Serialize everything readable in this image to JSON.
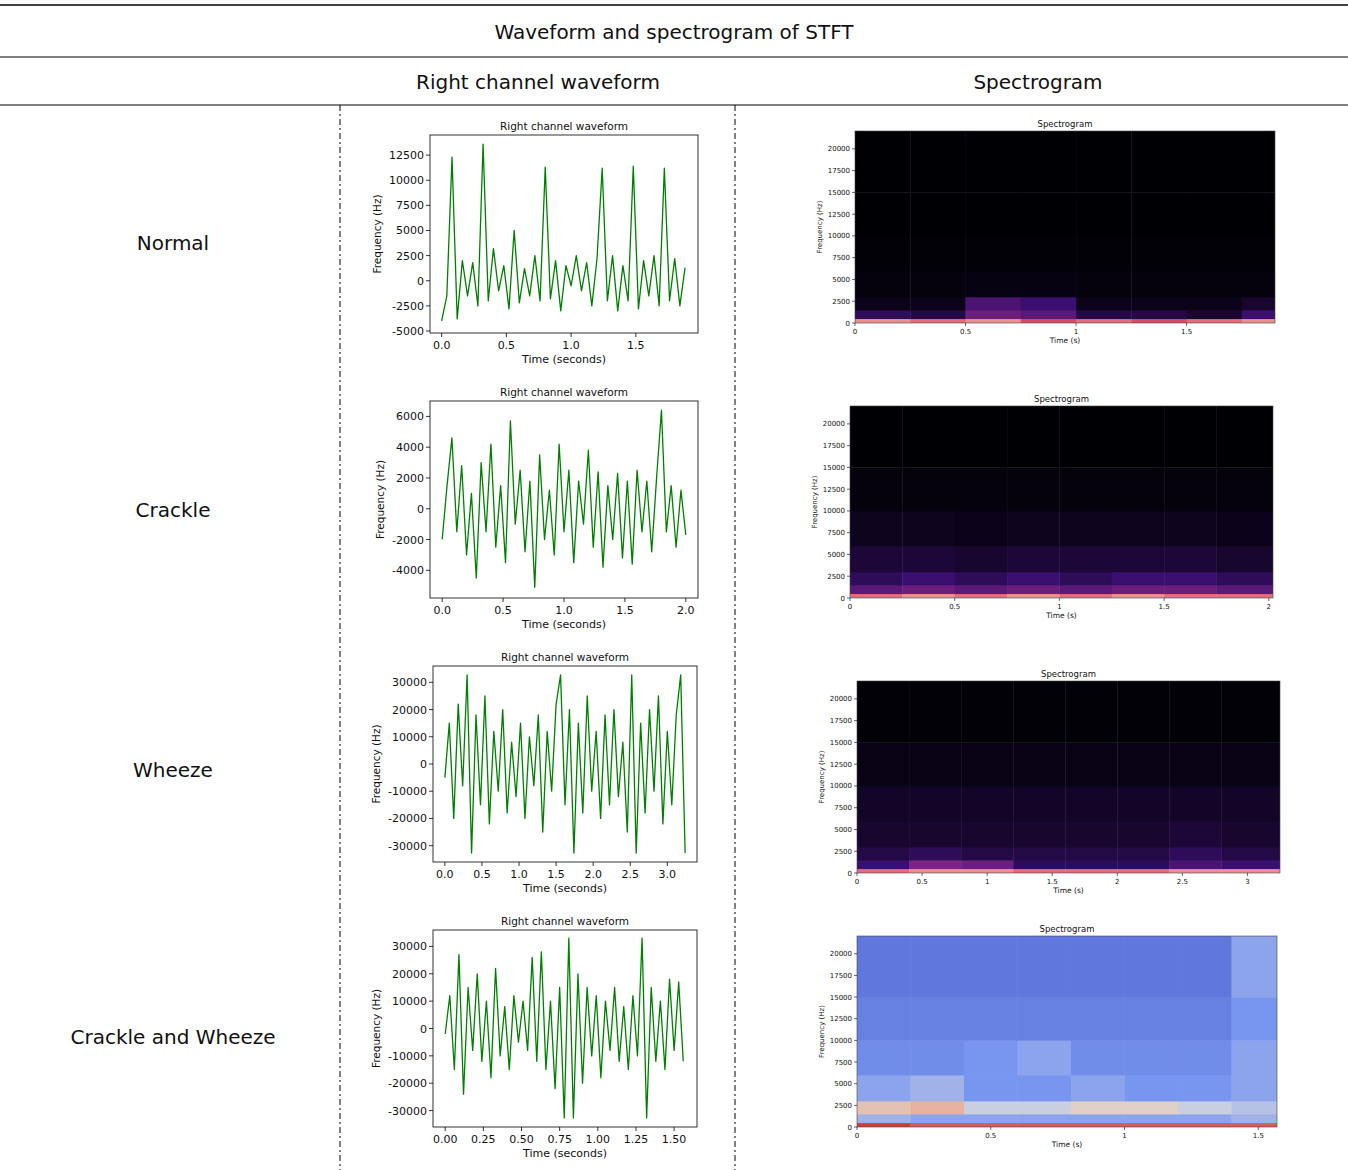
{
  "table": {
    "title": "Waveform and spectrogram of STFT",
    "columns": [
      "Right channel waveform",
      "Spectrogram"
    ],
    "rows": [
      "Normal",
      "Crackle",
      "Wheeze",
      "Crackle and Wheeze"
    ]
  },
  "chart_data": [
    {
      "type": "line",
      "title": "Right channel waveform",
      "x_label": "Time (seconds)",
      "y_label": "Frequency (Hz)",
      "color": "#008000",
      "grid": false,
      "xlim": [
        -0.09,
        1.98
      ],
      "ylim": [
        -5200,
        14500
      ],
      "xticks": [
        {
          "value": 0,
          "label": "0.0"
        },
        {
          "value": 0.5,
          "label": "0.5"
        },
        {
          "value": 1,
          "label": "1.0"
        },
        {
          "value": 1.5,
          "label": "1.5"
        }
      ],
      "yticks": [
        -5000,
        -2500,
        0,
        2500,
        5000,
        7500,
        10000,
        12500
      ],
      "x": [
        0,
        0.04,
        0.08,
        0.12,
        0.16,
        0.2,
        0.24,
        0.28,
        0.32,
        0.36,
        0.4,
        0.44,
        0.48,
        0.52,
        0.56,
        0.6,
        0.64,
        0.68,
        0.72,
        0.76,
        0.8,
        0.84,
        0.88,
        0.92,
        0.96,
        1.0,
        1.04,
        1.08,
        1.12,
        1.16,
        1.2,
        1.24,
        1.28,
        1.32,
        1.36,
        1.4,
        1.44,
        1.48,
        1.52,
        1.56,
        1.6,
        1.64,
        1.68,
        1.72,
        1.76,
        1.8,
        1.84,
        1.88
      ],
      "values": [
        -4000,
        -1500,
        12300,
        -3800,
        2000,
        -1500,
        1800,
        -2500,
        13600,
        -2000,
        3200,
        -1000,
        1500,
        -2800,
        5000,
        -2200,
        1200,
        -1500,
        2500,
        -2000,
        11300,
        -1800,
        2000,
        -3000,
        1500,
        -500,
        2500,
        -1000,
        1800,
        -2500,
        2200,
        11200,
        -2000,
        2500,
        -3000,
        1500,
        -2000,
        11400,
        -2800,
        2000,
        -1500,
        2500,
        -2500,
        11200,
        -2000,
        2200,
        -2500,
        1300
      ]
    },
    {
      "type": "heatmap",
      "title": "Spectrogram",
      "x_label": "Time (s)",
      "y_label": "Frequency (Hz)",
      "color": "magma",
      "xlim": [
        0,
        1.9
      ],
      "ylim": [
        0,
        22050
      ],
      "xticks": [
        0,
        0.5,
        1,
        1.5
      ],
      "yticks": [
        0,
        2500,
        5000,
        7500,
        10000,
        12500,
        15000,
        17500,
        20000
      ],
      "clim": [
        0,
        100
      ],
      "time_edges": [
        0,
        0.25,
        0.5,
        0.75,
        1.0,
        1.25,
        1.5,
        1.75,
        1.9
      ],
      "freq_edges": [
        0,
        500,
        1500,
        3000,
        6000,
        10000,
        15000,
        22050
      ],
      "cells": [
        [
          85,
          80,
          85,
          75,
          80,
          75,
          80,
          85
        ],
        [
          20,
          15,
          40,
          35,
          15,
          15,
          10,
          25
        ],
        [
          5,
          5,
          30,
          25,
          5,
          5,
          5,
          10
        ],
        [
          2,
          2,
          3,
          3,
          2,
          2,
          2,
          2
        ],
        [
          1,
          1,
          1,
          1,
          1,
          1,
          1,
          1
        ],
        [
          0,
          0,
          0,
          0,
          0,
          0,
          0,
          0
        ],
        [
          0,
          0,
          0,
          0,
          0,
          0,
          0,
          0
        ]
      ]
    },
    {
      "type": "line",
      "title": "Right channel waveform",
      "x_label": "Time (seconds)",
      "y_label": "Frequency (Hz)",
      "color": "#008000",
      "grid": false,
      "xlim": [
        -0.1,
        2.1
      ],
      "ylim": [
        -5800,
        7000
      ],
      "xticks": [
        {
          "value": 0,
          "label": "0.0"
        },
        {
          "value": 0.5,
          "label": "0.5"
        },
        {
          "value": 1,
          "label": "1.0"
        },
        {
          "value": 1.5,
          "label": "1.5"
        },
        {
          "value": 2,
          "label": "2.0"
        }
      ],
      "yticks": [
        -4000,
        -2000,
        0,
        2000,
        4000,
        6000
      ],
      "x": [
        0,
        0.04,
        0.08,
        0.12,
        0.16,
        0.2,
        0.24,
        0.28,
        0.32,
        0.36,
        0.4,
        0.44,
        0.48,
        0.52,
        0.56,
        0.6,
        0.64,
        0.68,
        0.72,
        0.76,
        0.8,
        0.84,
        0.88,
        0.92,
        0.96,
        1.0,
        1.04,
        1.08,
        1.12,
        1.16,
        1.2,
        1.24,
        1.28,
        1.32,
        1.36,
        1.4,
        1.44,
        1.48,
        1.52,
        1.56,
        1.6,
        1.64,
        1.68,
        1.72,
        1.76,
        1.8,
        1.84,
        1.88,
        1.92,
        1.96,
        2.0
      ],
      "values": [
        -2000,
        1500,
        4600,
        -1500,
        2800,
        -3000,
        1000,
        -4500,
        3000,
        -1500,
        4200,
        -2500,
        1500,
        -3500,
        5700,
        -1000,
        2500,
        -2800,
        1800,
        -5100,
        3500,
        -2000,
        1200,
        -3000,
        4200,
        -1500,
        2500,
        -3500,
        1800,
        -1000,
        3800,
        -2500,
        2400,
        -3800,
        1500,
        -2000,
        2300,
        -3200,
        1800,
        -3600,
        2500,
        -1500,
        1800,
        -2800,
        2000,
        6400,
        -1500,
        1500,
        -2500,
        1200,
        -1700
      ]
    },
    {
      "type": "heatmap",
      "title": "Spectrogram",
      "x_label": "Time (s)",
      "y_label": "Frequency (Hz)",
      "color": "magma",
      "xlim": [
        0,
        2.02
      ],
      "ylim": [
        0,
        22050
      ],
      "xticks": [
        0,
        0.5,
        1,
        1.5,
        2
      ],
      "yticks": [
        0,
        2500,
        5000,
        7500,
        10000,
        12500,
        15000,
        17500,
        20000
      ],
      "clim": [
        0,
        100
      ],
      "time_edges": [
        0,
        0.25,
        0.5,
        0.75,
        1.0,
        1.25,
        1.5,
        1.75,
        2.02
      ],
      "freq_edges": [
        0,
        500,
        1500,
        3000,
        6000,
        10000,
        15000,
        22050
      ],
      "cells": [
        [
          80,
          85,
          80,
          85,
          80,
          85,
          80,
          80
        ],
        [
          35,
          40,
          35,
          40,
          35,
          40,
          40,
          35
        ],
        [
          20,
          25,
          20,
          25,
          20,
          25,
          25,
          20
        ],
        [
          12,
          12,
          10,
          12,
          12,
          12,
          12,
          10
        ],
        [
          6,
          6,
          5,
          6,
          6,
          6,
          6,
          5
        ],
        [
          2,
          2,
          2,
          2,
          2,
          2,
          2,
          2
        ],
        [
          0,
          0,
          0,
          0,
          0,
          0,
          0,
          0
        ]
      ]
    },
    {
      "type": "line",
      "title": "Right channel waveform",
      "x_label": "Time (seconds)",
      "y_label": "Frequency (Hz)",
      "color": "#008000",
      "grid": false,
      "xlim": [
        -0.16,
        3.4
      ],
      "ylim": [
        -36000,
        36000
      ],
      "xticks": [
        {
          "value": 0,
          "label": "0.0"
        },
        {
          "value": 0.5,
          "label": "0.5"
        },
        {
          "value": 1,
          "label": "1.0"
        },
        {
          "value": 1.5,
          "label": "1.5"
        },
        {
          "value": 2,
          "label": "2.0"
        },
        {
          "value": 2.5,
          "label": "2.5"
        },
        {
          "value": 3,
          "label": "3.0"
        }
      ],
      "yticks": [
        -30000,
        -20000,
        -10000,
        0,
        10000,
        20000,
        30000
      ],
      "x": [
        0,
        0.06,
        0.12,
        0.18,
        0.24,
        0.3,
        0.36,
        0.42,
        0.48,
        0.54,
        0.6,
        0.66,
        0.72,
        0.78,
        0.84,
        0.9,
        0.96,
        1.02,
        1.08,
        1.14,
        1.2,
        1.26,
        1.32,
        1.38,
        1.44,
        1.5,
        1.56,
        1.62,
        1.68,
        1.74,
        1.8,
        1.86,
        1.92,
        1.98,
        2.04,
        2.1,
        2.16,
        2.22,
        2.28,
        2.34,
        2.4,
        2.46,
        2.52,
        2.58,
        2.64,
        2.7,
        2.76,
        2.82,
        2.88,
        2.94,
        3.0,
        3.06,
        3.12,
        3.18,
        3.24
      ],
      "values": [
        -5000,
        15000,
        -20000,
        22000,
        -8000,
        32700,
        -32700,
        18000,
        -15000,
        25000,
        -22000,
        12000,
        -10000,
        20000,
        -18000,
        8000,
        -12000,
        15000,
        -20000,
        10000,
        -8000,
        18000,
        -25000,
        12000,
        -10000,
        22000,
        32700,
        -15000,
        20000,
        -32700,
        15000,
        -18000,
        25000,
        -10000,
        12000,
        -20000,
        18000,
        -15000,
        20000,
        -12000,
        8000,
        -25000,
        32700,
        -32700,
        15000,
        -18000,
        20000,
        -10000,
        25000,
        -22000,
        12000,
        -15000,
        18000,
        32700,
        -32700
      ]
    },
    {
      "type": "heatmap",
      "title": "Spectrogram",
      "x_label": "Time (s)",
      "y_label": "Frequency (Hz)",
      "color": "magma",
      "xlim": [
        0,
        3.25
      ],
      "ylim": [
        0,
        22050
      ],
      "xticks": [
        0,
        0.5,
        1,
        1.5,
        2,
        2.5,
        3
      ],
      "yticks": [
        0,
        2500,
        5000,
        7500,
        10000,
        12500,
        15000,
        17500,
        20000
      ],
      "clim": [
        0,
        100
      ],
      "time_edges": [
        0,
        0.4,
        0.8,
        1.2,
        1.6,
        2.0,
        2.4,
        2.8,
        3.25
      ],
      "freq_edges": [
        0,
        500,
        1500,
        3000,
        6000,
        10000,
        15000,
        22050
      ],
      "cells": [
        [
          80,
          85,
          85,
          80,
          80,
          80,
          85,
          85
        ],
        [
          25,
          45,
          40,
          20,
          20,
          20,
          30,
          25
        ],
        [
          15,
          20,
          15,
          15,
          15,
          15,
          20,
          15
        ],
        [
          10,
          10,
          10,
          10,
          10,
          10,
          12,
          10
        ],
        [
          8,
          8,
          8,
          8,
          8,
          8,
          8,
          8
        ],
        [
          4,
          4,
          4,
          4,
          4,
          4,
          4,
          4
        ],
        [
          1,
          1,
          1,
          1,
          1,
          1,
          1,
          1
        ]
      ]
    },
    {
      "type": "line",
      "title": "Right channel waveform",
      "x_label": "Time (seconds)",
      "y_label": "Frequency (Hz)",
      "color": "#008000",
      "grid": false,
      "xlim": [
        -0.08,
        1.65
      ],
      "ylim": [
        -36000,
        36000
      ],
      "xticks": [
        {
          "value": 0,
          "label": "0.00"
        },
        {
          "value": 0.25,
          "label": "0.25"
        },
        {
          "value": 0.5,
          "label": "0.50"
        },
        {
          "value": 0.75,
          "label": "0.75"
        },
        {
          "value": 1,
          "label": "1.00"
        },
        {
          "value": 1.25,
          "label": "1.25"
        },
        {
          "value": 1.5,
          "label": "1.50"
        }
      ],
      "yticks": [
        -30000,
        -20000,
        -10000,
        0,
        10000,
        20000,
        30000
      ],
      "x": [
        0,
        0.03,
        0.06,
        0.09,
        0.12,
        0.15,
        0.18,
        0.21,
        0.24,
        0.27,
        0.3,
        0.33,
        0.36,
        0.39,
        0.42,
        0.45,
        0.48,
        0.51,
        0.54,
        0.57,
        0.6,
        0.63,
        0.66,
        0.69,
        0.72,
        0.75,
        0.78,
        0.81,
        0.84,
        0.87,
        0.9,
        0.93,
        0.96,
        0.99,
        1.02,
        1.05,
        1.08,
        1.11,
        1.14,
        1.17,
        1.2,
        1.23,
        1.26,
        1.29,
        1.32,
        1.35,
        1.38,
        1.41,
        1.44,
        1.47,
        1.5,
        1.53,
        1.56
      ],
      "values": [
        -2000,
        12000,
        -15000,
        27000,
        -24000,
        15000,
        -8000,
        20000,
        -12000,
        10000,
        -18000,
        22000,
        -10000,
        8000,
        -15000,
        12000,
        -5000,
        10000,
        -8000,
        26000,
        -12000,
        28000,
        -15000,
        10000,
        -22000,
        15000,
        -32700,
        33000,
        -32700,
        20000,
        -20000,
        15000,
        -10000,
        12000,
        -18000,
        10000,
        -8000,
        15000,
        -12000,
        8000,
        -15000,
        12000,
        -10000,
        33000,
        -32700,
        15000,
        -12000,
        10000,
        -15000,
        18000,
        -8000,
        17000,
        -12000
      ]
    },
    {
      "type": "heatmap",
      "title": "Spectrogram",
      "x_label": "Time (s)",
      "y_label": "Frequency (Hz)",
      "color": "coolwarm",
      "xlim": [
        0,
        1.57
      ],
      "ylim": [
        0,
        22050
      ],
      "xticks": [
        0,
        0.5,
        1,
        1.5
      ],
      "yticks": [
        0,
        2500,
        5000,
        7500,
        10000,
        12500,
        15000,
        17500,
        20000
      ],
      "clim": [
        0,
        100
      ],
      "time_edges": [
        0,
        0.2,
        0.4,
        0.6,
        0.8,
        1.0,
        1.2,
        1.4,
        1.57
      ],
      "freq_edges": [
        0,
        500,
        1500,
        3000,
        6000,
        10000,
        15000,
        22050
      ],
      "cells": [
        [
          90,
          85,
          85,
          85,
          85,
          85,
          85,
          85
        ],
        [
          35,
          30,
          30,
          30,
          30,
          30,
          30,
          35
        ],
        [
          60,
          65,
          45,
          45,
          55,
          55,
          45,
          40
        ],
        [
          30,
          35,
          25,
          25,
          30,
          25,
          25,
          30
        ],
        [
          22,
          22,
          25,
          30,
          22,
          22,
          22,
          30
        ],
        [
          18,
          18,
          18,
          18,
          18,
          18,
          18,
          25
        ],
        [
          15,
          15,
          15,
          15,
          15,
          15,
          15,
          30
        ]
      ]
    }
  ]
}
